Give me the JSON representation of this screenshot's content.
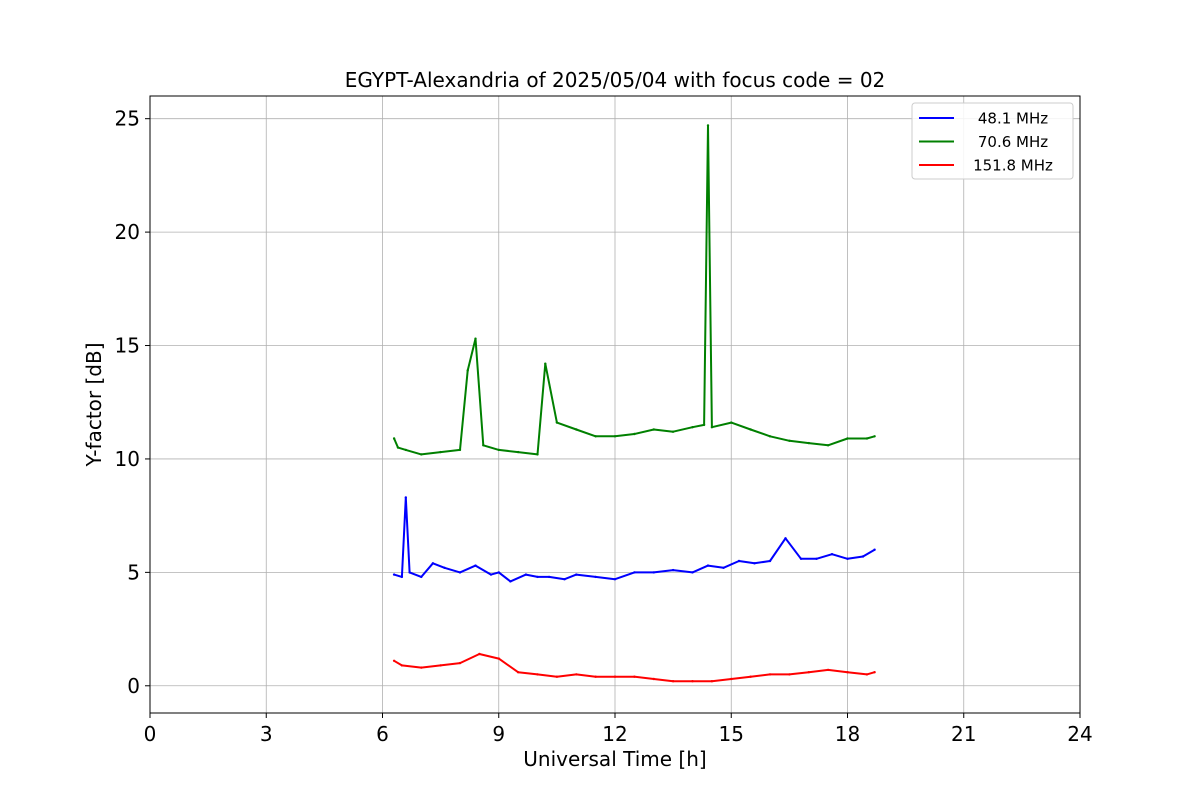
{
  "chart_data": {
    "type": "line",
    "title": "EGYPT-Alexandria of 2025/05/04 with focus code = 02",
    "xlabel": "Universal Time [h]",
    "ylabel": "Y-factor [dB]",
    "xlim": [
      0,
      24
    ],
    "ylim": [
      -1.2,
      26
    ],
    "xticks": [
      0,
      3,
      6,
      9,
      12,
      15,
      18,
      21,
      24
    ],
    "yticks": [
      0,
      5,
      10,
      15,
      20,
      25
    ],
    "grid": true,
    "legend_position": "top-right",
    "series": [
      {
        "name": "48.1 MHz",
        "color": "#0000ff",
        "x": [
          6.3,
          6.5,
          6.6,
          6.7,
          7.0,
          7.3,
          7.6,
          8.0,
          8.4,
          8.8,
          9.0,
          9.3,
          9.7,
          10.0,
          10.3,
          10.7,
          11.0,
          11.5,
          12.0,
          12.5,
          13.0,
          13.5,
          14.0,
          14.4,
          14.8,
          15.2,
          15.6,
          16.0,
          16.4,
          16.8,
          17.2,
          17.6,
          18.0,
          18.4,
          18.7
        ],
        "y": [
          4.9,
          4.8,
          8.3,
          5.0,
          4.8,
          5.4,
          5.2,
          5.0,
          5.3,
          4.9,
          5.0,
          4.6,
          4.9,
          4.8,
          4.8,
          4.7,
          4.9,
          4.8,
          4.7,
          5.0,
          5.0,
          5.1,
          5.0,
          5.3,
          5.2,
          5.5,
          5.4,
          5.5,
          6.5,
          5.6,
          5.6,
          5.8,
          5.6,
          5.7,
          6.0
        ]
      },
      {
        "name": "70.6 MHz",
        "color": "#008000",
        "x": [
          6.3,
          6.4,
          6.6,
          7.0,
          7.5,
          8.0,
          8.2,
          8.4,
          8.6,
          9.0,
          9.5,
          10.0,
          10.2,
          10.5,
          11.0,
          11.5,
          12.0,
          12.5,
          13.0,
          13.5,
          14.0,
          14.3,
          14.4,
          14.5,
          15.0,
          15.5,
          16.0,
          16.5,
          17.0,
          17.5,
          18.0,
          18.5,
          18.7
        ],
        "y": [
          10.9,
          10.5,
          10.4,
          10.2,
          10.3,
          10.4,
          13.9,
          15.3,
          10.6,
          10.4,
          10.3,
          10.2,
          14.2,
          11.6,
          11.3,
          11.0,
          11.0,
          11.1,
          11.3,
          11.2,
          11.4,
          11.5,
          24.7,
          11.4,
          11.6,
          11.3,
          11.0,
          10.8,
          10.7,
          10.6,
          10.9,
          10.9,
          11.0
        ]
      },
      {
        "name": "151.8 MHz",
        "color": "#ff0000",
        "x": [
          6.3,
          6.5,
          7.0,
          7.5,
          8.0,
          8.5,
          9.0,
          9.5,
          10.0,
          10.5,
          11.0,
          11.5,
          12.0,
          12.5,
          13.0,
          13.5,
          14.0,
          14.5,
          15.0,
          15.5,
          16.0,
          16.5,
          17.0,
          17.5,
          18.0,
          18.5,
          18.7
        ],
        "y": [
          1.1,
          0.9,
          0.8,
          0.9,
          1.0,
          1.4,
          1.2,
          0.6,
          0.5,
          0.4,
          0.5,
          0.4,
          0.4,
          0.4,
          0.3,
          0.2,
          0.2,
          0.2,
          0.3,
          0.4,
          0.5,
          0.5,
          0.6,
          0.7,
          0.6,
          0.5,
          0.6
        ]
      }
    ]
  }
}
